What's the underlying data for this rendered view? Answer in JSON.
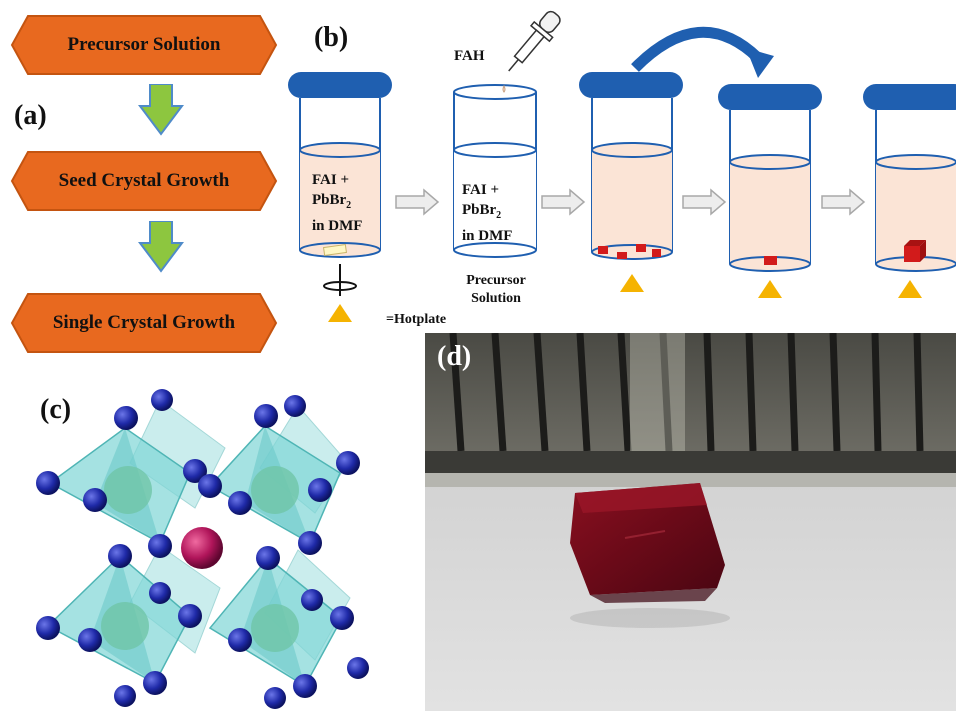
{
  "panel_labels": {
    "a": "(a)",
    "b": "(b)",
    "c": "(c)",
    "d": "(d)"
  },
  "flowchart": {
    "steps": [
      "Precursor Solution",
      "Seed Crystal Growth",
      "Single Crystal Growth"
    ]
  },
  "synthesis": {
    "fah_label": "FAH",
    "beaker1_line1": "FAI +",
    "beaker1_line2": "PbBr",
    "beaker1_sub": "2",
    "beaker1_line3": "in DMF",
    "beaker2_line1": "FAI +",
    "beaker2_line2": "PbBr",
    "beaker2_sub": "2",
    "beaker2_line3": "in DMF",
    "precursor_line1": "Precursor",
    "precursor_line2": "Solution",
    "hotplate_legend": "=Hotplate"
  },
  "colors": {
    "hexagon_fill": "#e8691f",
    "arrow_green": "#8dc63f",
    "lid_blue": "#1f5fb0",
    "solution": "#fbe4d6",
    "crystal_red": "#d21b1b",
    "hotplate_yellow": "#f5b301",
    "octahedron": "#7fd6d6",
    "atom_blue": "#1f2aa8",
    "atom_magenta": "#b0155a"
  }
}
